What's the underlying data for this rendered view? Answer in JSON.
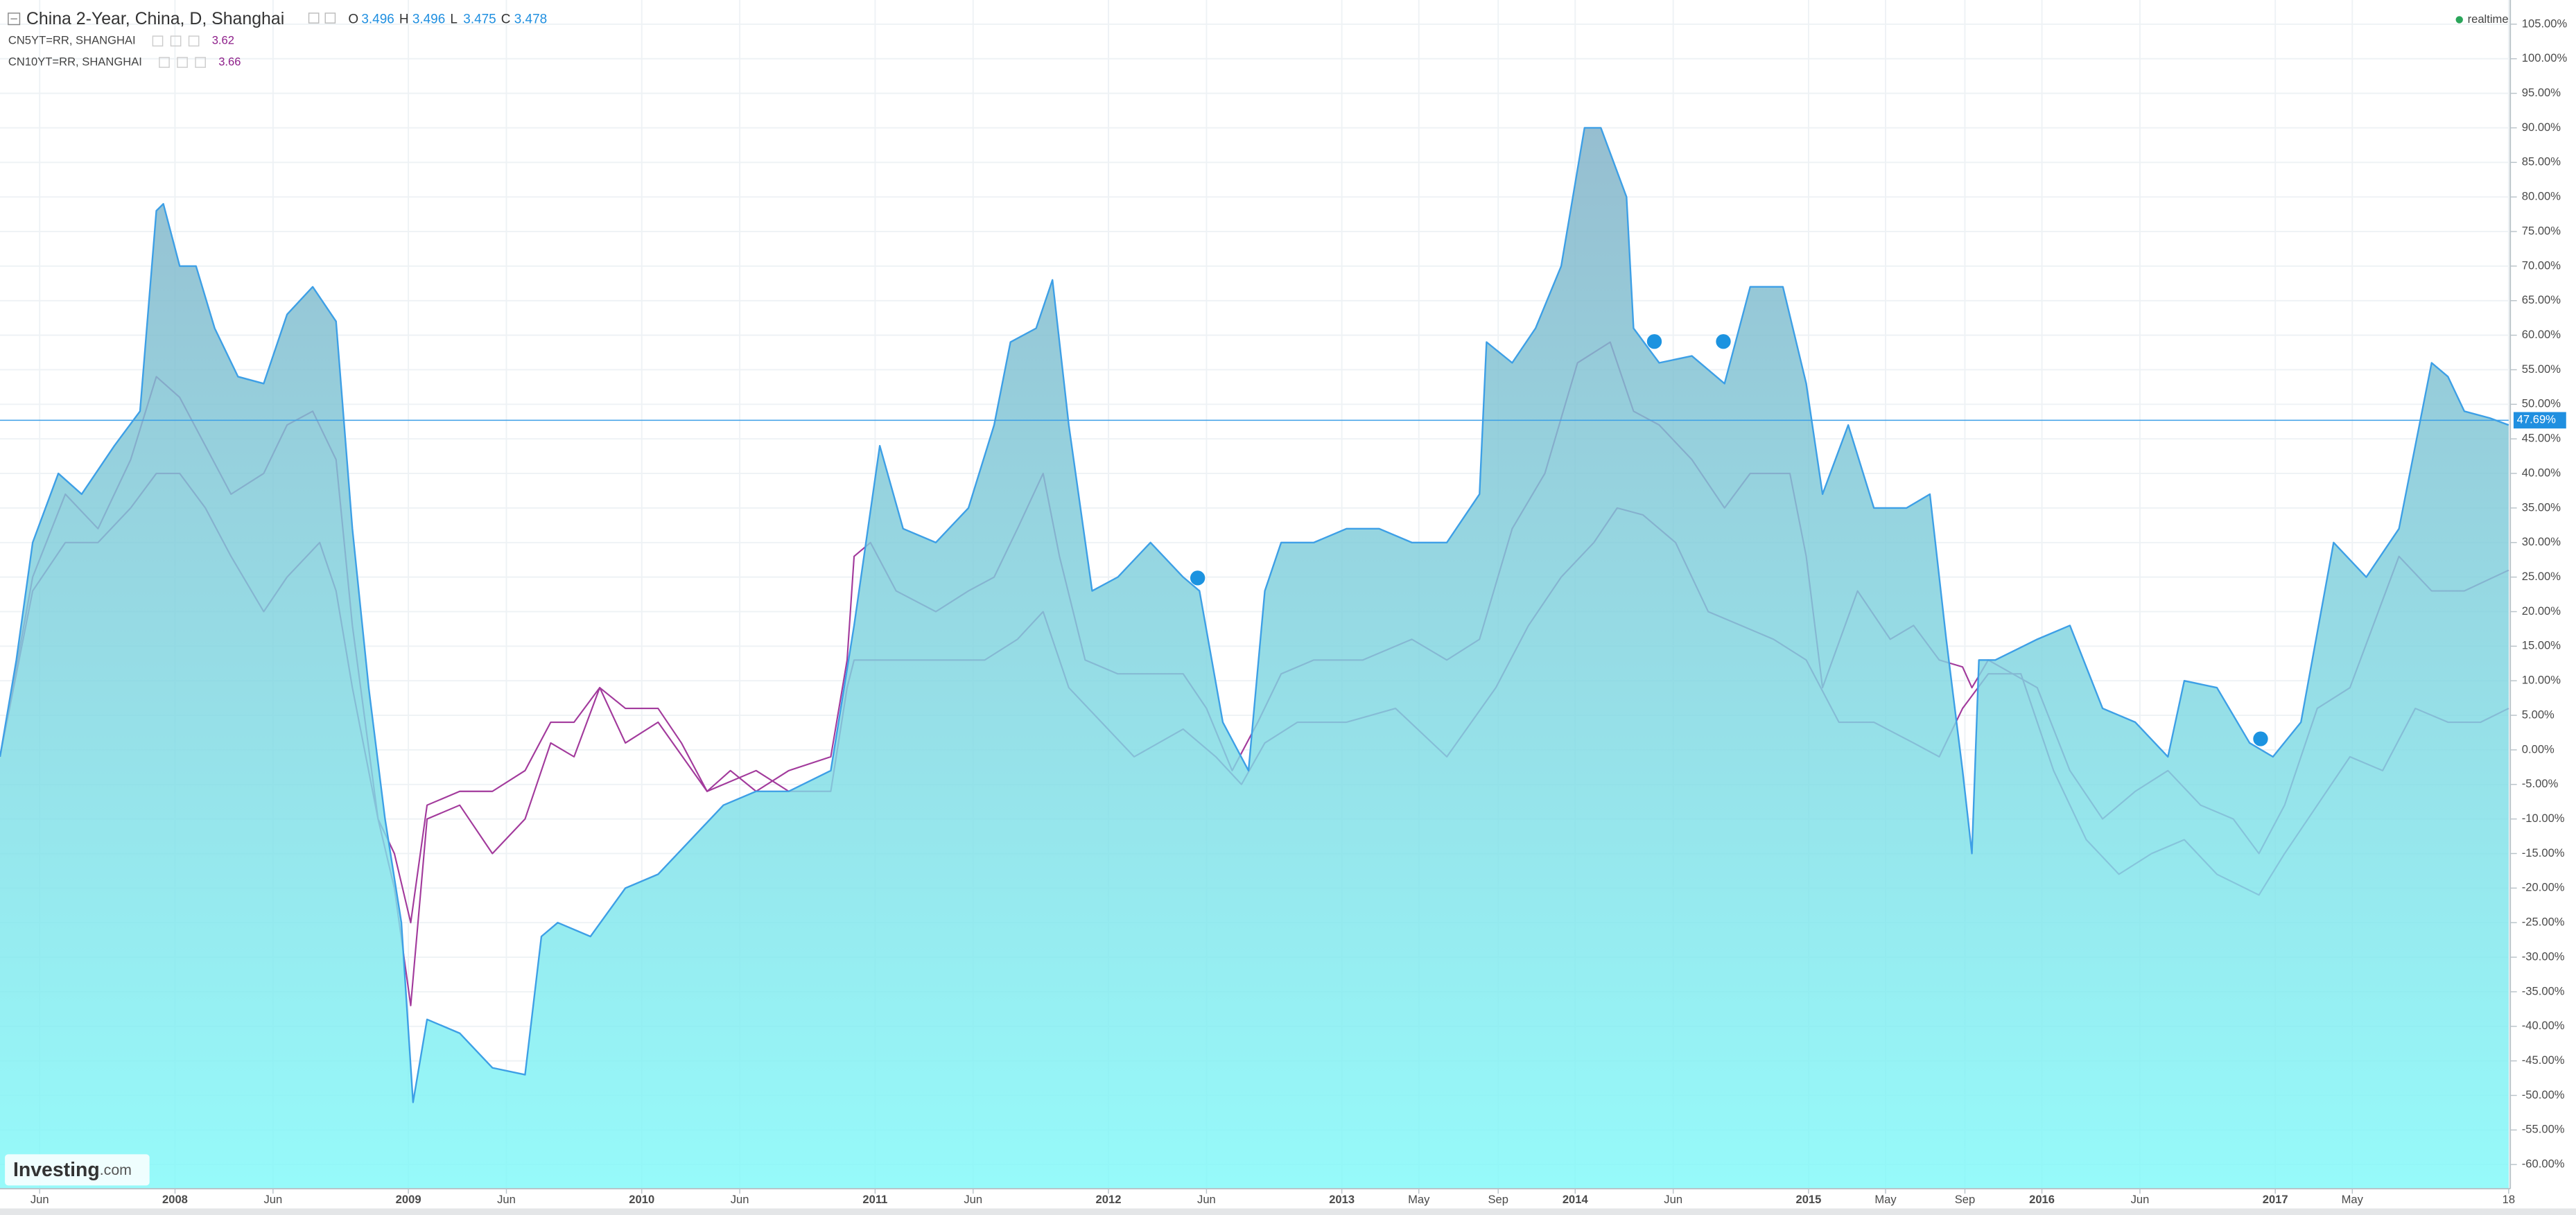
{
  "header": {
    "ohlc": [
      {
        "label": "O",
        "value": 3.496
      },
      {
        "label": "H",
        "value": 3.496
      },
      {
        "label": "L",
        "value": 3.475
      },
      {
        "label": "C",
        "value": 3.478
      }
    ]
  },
  "realtime": "realtime",
  "logo": {
    "name": "Investing",
    "suffix": ".com"
  },
  "chart_data": {
    "type": "area",
    "grid": true,
    "xlim": [
      2007.25,
      2018
    ],
    "xticks": [
      {
        "value": 2007.42,
        "label": "Jun"
      },
      2008,
      {
        "value": 2008.42,
        "label": "Jun"
      },
      2009,
      {
        "value": 2009.42,
        "label": "Jun"
      },
      2010,
      {
        "value": 2010.42,
        "label": "Jun"
      },
      2011,
      {
        "value": 2011.42,
        "label": "Jun"
      },
      2012,
      {
        "value": 2012.42,
        "label": "Jun"
      },
      2013,
      {
        "value": 2013.33,
        "label": "May"
      },
      {
        "value": 2013.67,
        "label": "Sep"
      },
      2014,
      {
        "value": 2014.42,
        "label": "Jun"
      },
      2015,
      {
        "value": 2015.33,
        "label": "May"
      },
      {
        "value": 2015.67,
        "label": "Sep"
      },
      2016,
      {
        "value": 2016.42,
        "label": "Jun"
      },
      2017,
      {
        "value": 2017.33,
        "label": "May"
      },
      {
        "value": 2018,
        "label": "18"
      }
    ],
    "ylim": [
      -63.5,
      108.5
    ],
    "yticks": [
      {
        "value": 105,
        "label": "105.00%"
      },
      {
        "value": 100,
        "label": "100.00%"
      },
      {
        "value": 95,
        "label": "95.00%"
      },
      {
        "value": 90,
        "label": "90.00%"
      },
      {
        "value": 85,
        "label": "85.00%"
      },
      {
        "value": 80,
        "label": "80.00%"
      },
      {
        "value": 75,
        "label": "75.00%"
      },
      {
        "value": 70,
        "label": "70.00%"
      },
      {
        "value": 65,
        "label": "65.00%"
      },
      {
        "value": 60,
        "label": "60.00%"
      },
      {
        "value": 55,
        "label": "55.00%"
      },
      {
        "value": 50,
        "label": "50.00%"
      },
      {
        "value": 45,
        "label": "45.00%"
      },
      {
        "value": 40,
        "label": "40.00%"
      },
      {
        "value": 35,
        "label": "35.00%"
      },
      {
        "value": 30,
        "label": "30.00%"
      },
      {
        "value": 25,
        "label": "25.00%"
      },
      {
        "value": 20,
        "label": "20.00%"
      },
      {
        "value": 15,
        "label": "15.00%"
      },
      {
        "value": 10,
        "label": "10.00%"
      },
      {
        "value": 5,
        "label": "5.00%"
      },
      {
        "value": 0,
        "label": "0.00%"
      },
      {
        "value": -5,
        "label": "-5.00%"
      },
      {
        "value": -10,
        "label": "-10.00%"
      },
      {
        "value": -15,
        "label": "-15.00%"
      },
      {
        "value": -20,
        "label": "-20.00%"
      },
      {
        "value": -25,
        "label": "-25.00%"
      },
      {
        "value": -30,
        "label": "-30.00%"
      },
      {
        "value": -35,
        "label": "-35.00%"
      },
      {
        "value": -40,
        "label": "-40.00%"
      },
      {
        "value": -45,
        "label": "-45.00%"
      },
      {
        "value": -50,
        "label": "-50.00%"
      },
      {
        "value": -55,
        "label": "-55.00%"
      },
      {
        "value": -60,
        "label": "-60.00%"
      }
    ],
    "last_value": 47.69,
    "last_label": "47.69%",
    "series": [
      {
        "name": "China 2-Year, China, D, Shanghai",
        "type": "area",
        "color": "#3d9fe6",
        "fill_top": "#7fb0c6",
        "fill_bottom": "#7ff9f9",
        "x": [
          2007.25,
          2007.32,
          2007.39,
          2007.5,
          2007.6,
          2007.74,
          2007.85,
          2007.92,
          2007.95,
          2008.02,
          2008.09,
          2008.17,
          2008.27,
          2008.38,
          2008.48,
          2008.59,
          2008.69,
          2008.76,
          2008.83,
          2008.9,
          2008.97,
          2009.02,
          2009.08,
          2009.22,
          2009.36,
          2009.5,
          2009.57,
          2009.64,
          2009.78,
          2009.93,
          2010.07,
          2010.21,
          2010.35,
          2010.49,
          2010.63,
          2010.81,
          2010.91,
          2011.02,
          2011.12,
          2011.26,
          2011.4,
          2011.51,
          2011.58,
          2011.69,
          2011.76,
          2011.83,
          2011.93,
          2012.04,
          2012.18,
          2012.32,
          2012.39,
          2012.49,
          2012.6,
          2012.67,
          2012.74,
          2012.88,
          2013.02,
          2013.16,
          2013.3,
          2013.45,
          2013.59,
          2013.62,
          2013.73,
          2013.83,
          2013.94,
          2014.04,
          2014.11,
          2014.22,
          2014.25,
          2014.36,
          2014.5,
          2014.64,
          2014.75,
          2014.89,
          2014.99,
          2015.06,
          2015.17,
          2015.28,
          2015.42,
          2015.52,
          2015.59,
          2015.66,
          2015.7,
          2015.73,
          2015.8,
          2015.98,
          2016.12,
          2016.26,
          2016.4,
          2016.54,
          2016.61,
          2016.75,
          2016.89,
          2016.99,
          2017.11,
          2017.25,
          2017.39,
          2017.53,
          2017.67,
          2017.74,
          2017.81,
          2017.92,
          2018
        ],
        "values": [
          -1,
          13,
          30,
          40,
          37,
          44,
          49,
          78,
          79,
          70,
          70,
          61,
          54,
          53,
          63,
          67,
          62,
          32,
          9,
          -10,
          -25,
          -51,
          -39,
          -41,
          -46,
          -47,
          -27,
          -25,
          -27,
          -20,
          -18,
          -13,
          -8,
          -6,
          -6,
          -3,
          18,
          44,
          32,
          30,
          35,
          47,
          59,
          61,
          68,
          47,
          23,
          25,
          30,
          25,
          23,
          4,
          -3,
          23,
          30,
          30,
          32,
          32,
          30,
          30,
          37,
          59,
          56,
          61,
          70,
          90,
          90,
          80,
          61,
          56,
          57,
          53,
          67,
          67,
          53,
          37,
          47,
          35,
          35,
          37,
          16,
          -3,
          -15,
          13,
          13,
          16,
          18,
          6,
          4,
          -1,
          10,
          9,
          1,
          -1,
          4,
          30,
          25,
          32,
          56,
          54,
          49,
          48,
          47
        ]
      },
      {
        "name": "CN5YT=RR, SHANGHAI",
        "type": "line",
        "color": "#a23a9c",
        "last": 3.62,
        "x": [
          2007.25,
          2007.39,
          2007.53,
          2007.67,
          2007.81,
          2007.92,
          2008.02,
          2008.13,
          2008.24,
          2008.38,
          2008.48,
          2008.59,
          2008.69,
          2008.76,
          2008.87,
          2008.94,
          2009.01,
          2009.08,
          2009.22,
          2009.36,
          2009.5,
          2009.61,
          2009.71,
          2009.82,
          2009.93,
          2010.07,
          2010.17,
          2010.28,
          2010.38,
          2010.49,
          2010.63,
          2010.81,
          2010.88,
          2010.91,
          2010.98,
          2011.09,
          2011.26,
          2011.4,
          2011.51,
          2011.61,
          2011.72,
          2011.79,
          2011.9,
          2012.04,
          2012.18,
          2012.32,
          2012.42,
          2012.53,
          2012.64,
          2012.74,
          2012.88,
          2013.09,
          2013.3,
          2013.45,
          2013.59,
          2013.73,
          2013.87,
          2014.01,
          2014.15,
          2014.25,
          2014.36,
          2014.5,
          2014.64,
          2014.75,
          2014.92,
          2014.99,
          2015.06,
          2015.21,
          2015.35,
          2015.45,
          2015.56,
          2015.66,
          2015.7,
          2015.77,
          2015.98,
          2016.12,
          2016.26,
          2016.4,
          2016.54,
          2016.68,
          2016.82,
          2016.93,
          2017.04,
          2017.18,
          2017.32,
          2017.53,
          2017.67,
          2017.81,
          2018
        ],
        "values": [
          -1,
          25,
          37,
          32,
          42,
          54,
          51,
          44,
          37,
          40,
          47,
          49,
          42,
          18,
          -10,
          -15,
          -25,
          -8,
          -6,
          -6,
          -3,
          4,
          4,
          9,
          6,
          6,
          1,
          -6,
          -3,
          -6,
          -3,
          -1,
          13,
          28,
          30,
          23,
          20,
          23,
          25,
          32,
          40,
          28,
          13,
          11,
          11,
          11,
          6,
          -3,
          4,
          11,
          13,
          13,
          16,
          13,
          16,
          32,
          40,
          56,
          59,
          49,
          47,
          42,
          35,
          40,
          40,
          28,
          9,
          23,
          16,
          18,
          13,
          12,
          9,
          13,
          9,
          -3,
          -10,
          -6,
          -3,
          -8,
          -10,
          -15,
          -8,
          6,
          9,
          28,
          23,
          23,
          26
        ]
      },
      {
        "name": "CN10YT=RR, SHANGHAI",
        "type": "line",
        "color": "#a23a9c",
        "last": 3.66,
        "x": [
          2007.25,
          2007.39,
          2007.53,
          2007.67,
          2007.81,
          2007.92,
          2008.02,
          2008.13,
          2008.24,
          2008.38,
          2008.48,
          2008.62,
          2008.69,
          2008.76,
          2008.87,
          2008.94,
          2009.01,
          2009.08,
          2009.22,
          2009.36,
          2009.5,
          2009.61,
          2009.71,
          2009.82,
          2009.93,
          2010.07,
          2010.28,
          2010.49,
          2010.63,
          2010.81,
          2010.88,
          2010.91,
          2011.05,
          2011.26,
          2011.47,
          2011.61,
          2011.72,
          2011.83,
          2011.97,
          2012.11,
          2012.32,
          2012.46,
          2012.57,
          2012.67,
          2012.81,
          2013.02,
          2013.23,
          2013.45,
          2013.66,
          2013.8,
          2013.94,
          2014.08,
          2014.18,
          2014.29,
          2014.43,
          2014.57,
          2014.71,
          2014.85,
          2014.99,
          2015.13,
          2015.28,
          2015.45,
          2015.56,
          2015.66,
          2015.77,
          2015.91,
          2016.05,
          2016.19,
          2016.33,
          2016.47,
          2016.61,
          2016.75,
          2016.93,
          2017.04,
          2017.18,
          2017.32,
          2017.46,
          2017.6,
          2017.74,
          2017.88,
          2018
        ],
        "values": [
          -1,
          23,
          30,
          30,
          35,
          40,
          40,
          35,
          28,
          20,
          25,
          30,
          23,
          9,
          -10,
          -20,
          -37,
          -10,
          -8,
          -15,
          -10,
          1,
          -1,
          9,
          1,
          4,
          -6,
          -3,
          -6,
          -6,
          9,
          13,
          13,
          13,
          13,
          16,
          20,
          9,
          4,
          -1,
          3,
          -1,
          -5,
          1,
          4,
          4,
          6,
          -1,
          9,
          18,
          25,
          30,
          35,
          34,
          30,
          20,
          18,
          16,
          13,
          4,
          4,
          1,
          -1,
          6,
          11,
          11,
          -3,
          -13,
          -18,
          -15,
          -13,
          -18,
          -21,
          -15,
          -8,
          -1,
          -3,
          6,
          4,
          4,
          6
        ]
      }
    ]
  }
}
